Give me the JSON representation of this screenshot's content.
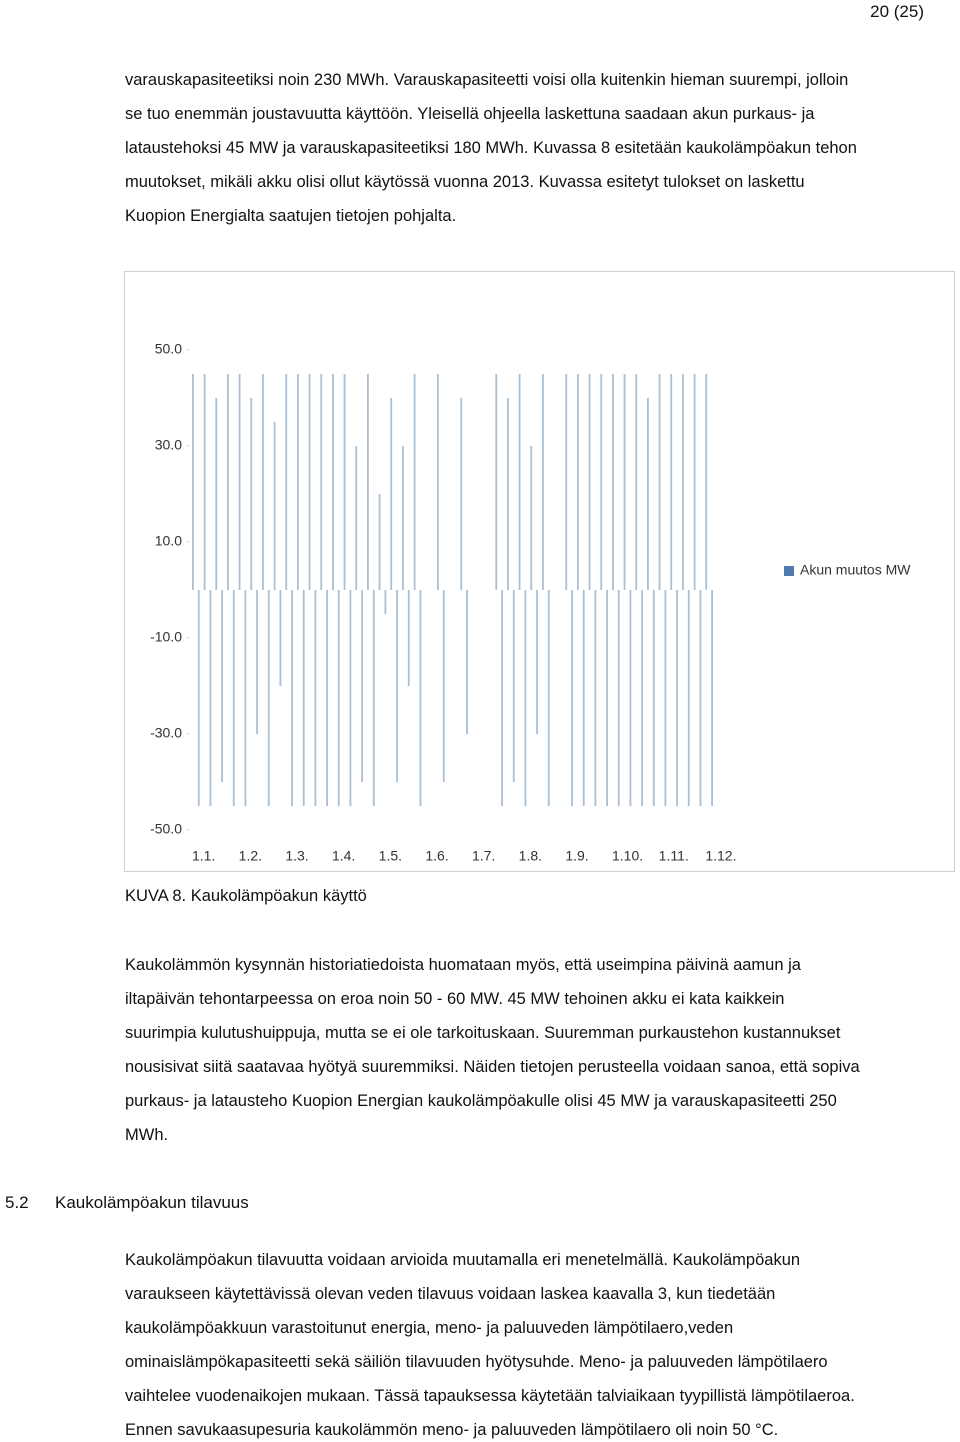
{
  "header": {
    "page_number": "20 (25)"
  },
  "paragraphs": [
    {
      "lines": [
        "varauskapasiteetiksi noin 230 MWh. Varauskapasiteetti voisi olla kuitenkin hieman suurempi, jolloin",
        "se tuo enemmän joustavuutta käyttöön. Yleisellä ohjeella laskettuna saadaan akun purkaus- ja",
        "lataustehoksi 45 MW ja varauskapasiteetiksi 180 MWh. Kuvassa 8 esitetään kaukolämpöakun tehon",
        "muutokset, mikäli akku olisi ollut käytössä vuonna 2013. Kuvassa esitetyt tulokset on laskettu",
        "Kuopion Energialta saatujen tietojen pohjalta."
      ]
    },
    {
      "lines": [
        "Kaukolämmön kysynnän historiatiedoista huomataan myös, että useimpina päivinä aamun ja",
        "iltapäivän tehontarpeessa on eroa noin 50 - 60 MW. 45 MW tehoinen akku ei kata kaikkein",
        "suurimpia kulutushuippuja, mutta se ei ole tarkoituskaan. Suuremman purkaustehon kustannukset",
        "nousisivat siitä saatavaa hyötyä suuremmiksi. Näiden tietojen perusteella voidaan sanoa, että sopiva",
        "purkaus- ja latausteho Kuopion Energian kaukolämpöakulle olisi 45 MW ja varauskapasiteetti 250",
        "MWh."
      ]
    },
    {
      "lines": [
        "Kaukolämpöakun tilavuutta voidaan arvioida muutamalla eri menetelmällä. Kaukolämpöakun",
        "varaukseen käytettävissä olevan veden tilavuus voidaan laskea kaavalla 3, kun tiedetään",
        "kaukolämpöakkuun varastoitunut energia, meno- ja paluuveden lämpötilaero,veden",
        "ominaislämpökapasiteetti sekä säiliön tilavuuden hyötysuhde. Meno- ja paluuveden lämpötilaero",
        "vaihtelee vuodenaikojen mukaan. Tässä tapauksessa käytetään talviaikaan tyypillistä lämpötilaeroa.",
        "Ennen savukaasupesuria kaukolämmön meno- ja paluuveden lämpötilaero oli noin 50 °C."
      ]
    }
  ],
  "caption": "KUVA 8. Kaukolämpöakun käyttö",
  "section": {
    "number": "5.2",
    "title": "Kaukolämpöakun tilavuus"
  },
  "chart_data": {
    "type": "bar",
    "categories": [
      "1.1.",
      null,
      null,
      null,
      null,
      null,
      null,
      null,
      "1.2.",
      null,
      null,
      null,
      null,
      null,
      null,
      null,
      "1.3.",
      null,
      null,
      null,
      null,
      null,
      null,
      null,
      "1.4.",
      null,
      null,
      null,
      null,
      null,
      null,
      null,
      "1.5.",
      null,
      null,
      null,
      null,
      null,
      null,
      null,
      "1.6.",
      null,
      null,
      null,
      null,
      null,
      null,
      null,
      "1.7.",
      null,
      null,
      null,
      null,
      null,
      null,
      null,
      "1.8.",
      null,
      null,
      null,
      null,
      null,
      null,
      null,
      "1.9.",
      null,
      null,
      null,
      null,
      null,
      null,
      null,
      "1.10.",
      null,
      null,
      null,
      null,
      null,
      null,
      null,
      "1.11.",
      null,
      null,
      null,
      null,
      null,
      null,
      null,
      "1.12.",
      null,
      null,
      null,
      null,
      null,
      null,
      null
    ],
    "series": [
      {
        "name": "Akun muutos MW",
        "color": "#a9bfd3",
        "values": [
          45,
          -45,
          45,
          -45,
          40,
          -40,
          45,
          -45,
          45,
          -45,
          40,
          -30,
          45,
          -45,
          35,
          -20,
          45,
          -45,
          45,
          -45,
          45,
          -45,
          45,
          -45,
          45,
          -45,
          45,
          -45,
          30,
          -40,
          45,
          -45,
          20,
          -5,
          40,
          -40,
          30,
          -20,
          45,
          -45,
          0,
          0,
          45,
          -40,
          0,
          0,
          40,
          -30,
          0,
          0,
          0,
          0,
          45,
          -45,
          40,
          -40,
          45,
          -45,
          30,
          -30,
          45,
          -45,
          0,
          0,
          45,
          -45,
          45,
          -45,
          45,
          -45,
          45,
          -45,
          45,
          -45,
          45,
          -45,
          45,
          -45,
          40,
          -45,
          45,
          -45,
          45,
          -45,
          45,
          -45,
          45,
          -45,
          45,
          -45,
          0,
          0,
          0,
          0,
          0,
          0
        ]
      }
    ],
    "legend_color": "#4f7bb0",
    "ylim": [
      -50,
      50
    ],
    "yticks": [
      {
        "value": 50,
        "label": "50.0"
      },
      {
        "value": 30,
        "label": "30.0"
      },
      {
        "value": 10,
        "label": "10.0"
      },
      {
        "value": -10,
        "label": "-10.0"
      },
      {
        "value": -30,
        "label": "-30.0"
      },
      {
        "value": -50,
        "label": "-50.0"
      }
    ],
    "legend": "right",
    "grid": false
  }
}
